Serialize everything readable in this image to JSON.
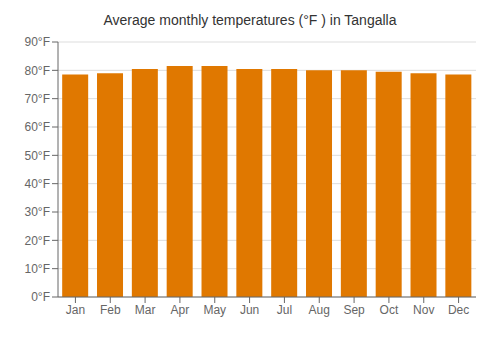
{
  "chart_data": {
    "type": "bar",
    "title": "Average monthly temperatures (°F ) in Tangalla",
    "categories": [
      "Jan",
      "Feb",
      "Mar",
      "Apr",
      "May",
      "Jun",
      "Jul",
      "Aug",
      "Sep",
      "Oct",
      "Nov",
      "Dec"
    ],
    "values": [
      78.5,
      79.0,
      80.5,
      81.5,
      81.5,
      80.5,
      80.5,
      80.0,
      80.0,
      79.5,
      79.0,
      78.5
    ],
    "color": "#E07800",
    "ylim": [
      0,
      90
    ],
    "yticks": [
      {
        "value": 0,
        "label": "0°F"
      },
      {
        "value": 10,
        "label": "10°F"
      },
      {
        "value": 20,
        "label": "20°F"
      },
      {
        "value": 30,
        "label": "30°F"
      },
      {
        "value": 40,
        "label": "40°F"
      },
      {
        "value": 50,
        "label": "50°F"
      },
      {
        "value": 60,
        "label": "60°F"
      },
      {
        "value": 70,
        "label": "70°F"
      },
      {
        "value": 80,
        "label": "80°F"
      },
      {
        "value": 90,
        "label": "90°F"
      }
    ],
    "grid": true
  }
}
